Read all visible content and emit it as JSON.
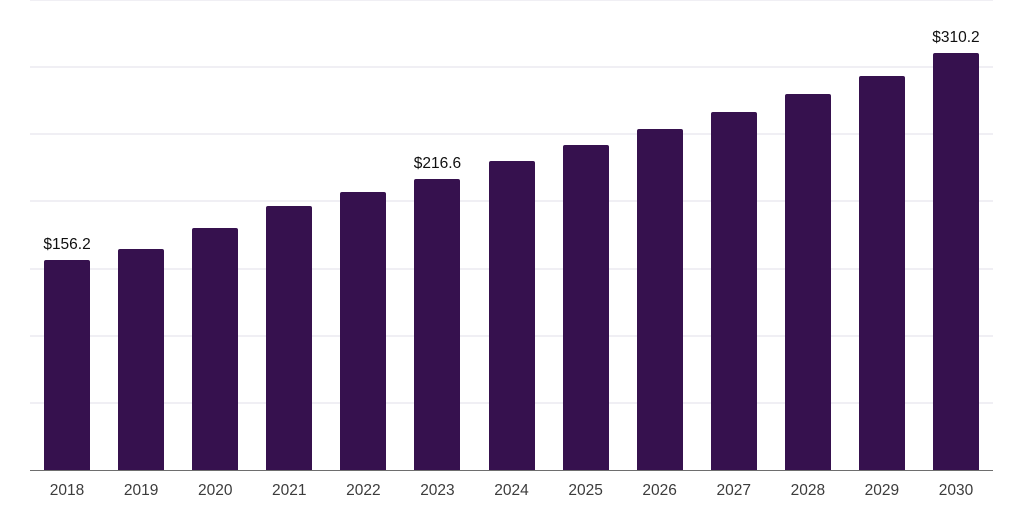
{
  "page": {
    "background_color": "#FFFFFF"
  },
  "chart_data": {
    "type": "bar",
    "title": "",
    "xlabel": "",
    "ylabel": "",
    "categories": [
      "2018",
      "2019",
      "2020",
      "2021",
      "2022",
      "2023",
      "2024",
      "2025",
      "2026",
      "2027",
      "2028",
      "2029",
      "2030"
    ],
    "values": [
      156.2,
      164.3,
      180.0,
      196.5,
      207.0,
      216.6,
      229.9,
      241.7,
      253.9,
      266.9,
      280.3,
      293.6,
      310.2
    ],
    "value_labels": [
      "$156.2",
      "",
      "",
      "",
      "",
      "$216.6",
      "",
      "",
      "",
      "",
      "",
      "",
      "$310.2"
    ],
    "ylim": [
      0,
      350
    ],
    "gridline_interval": 50,
    "grid": "horizontal",
    "y_axis_ticks_visible": false,
    "legend": "none",
    "colors": {
      "bar": "#36114E",
      "gridline": "#F0EFF4",
      "axis_line": "#6E6E6E",
      "x_tick_label": "#3C3C3C",
      "value_label": "#101010"
    }
  }
}
